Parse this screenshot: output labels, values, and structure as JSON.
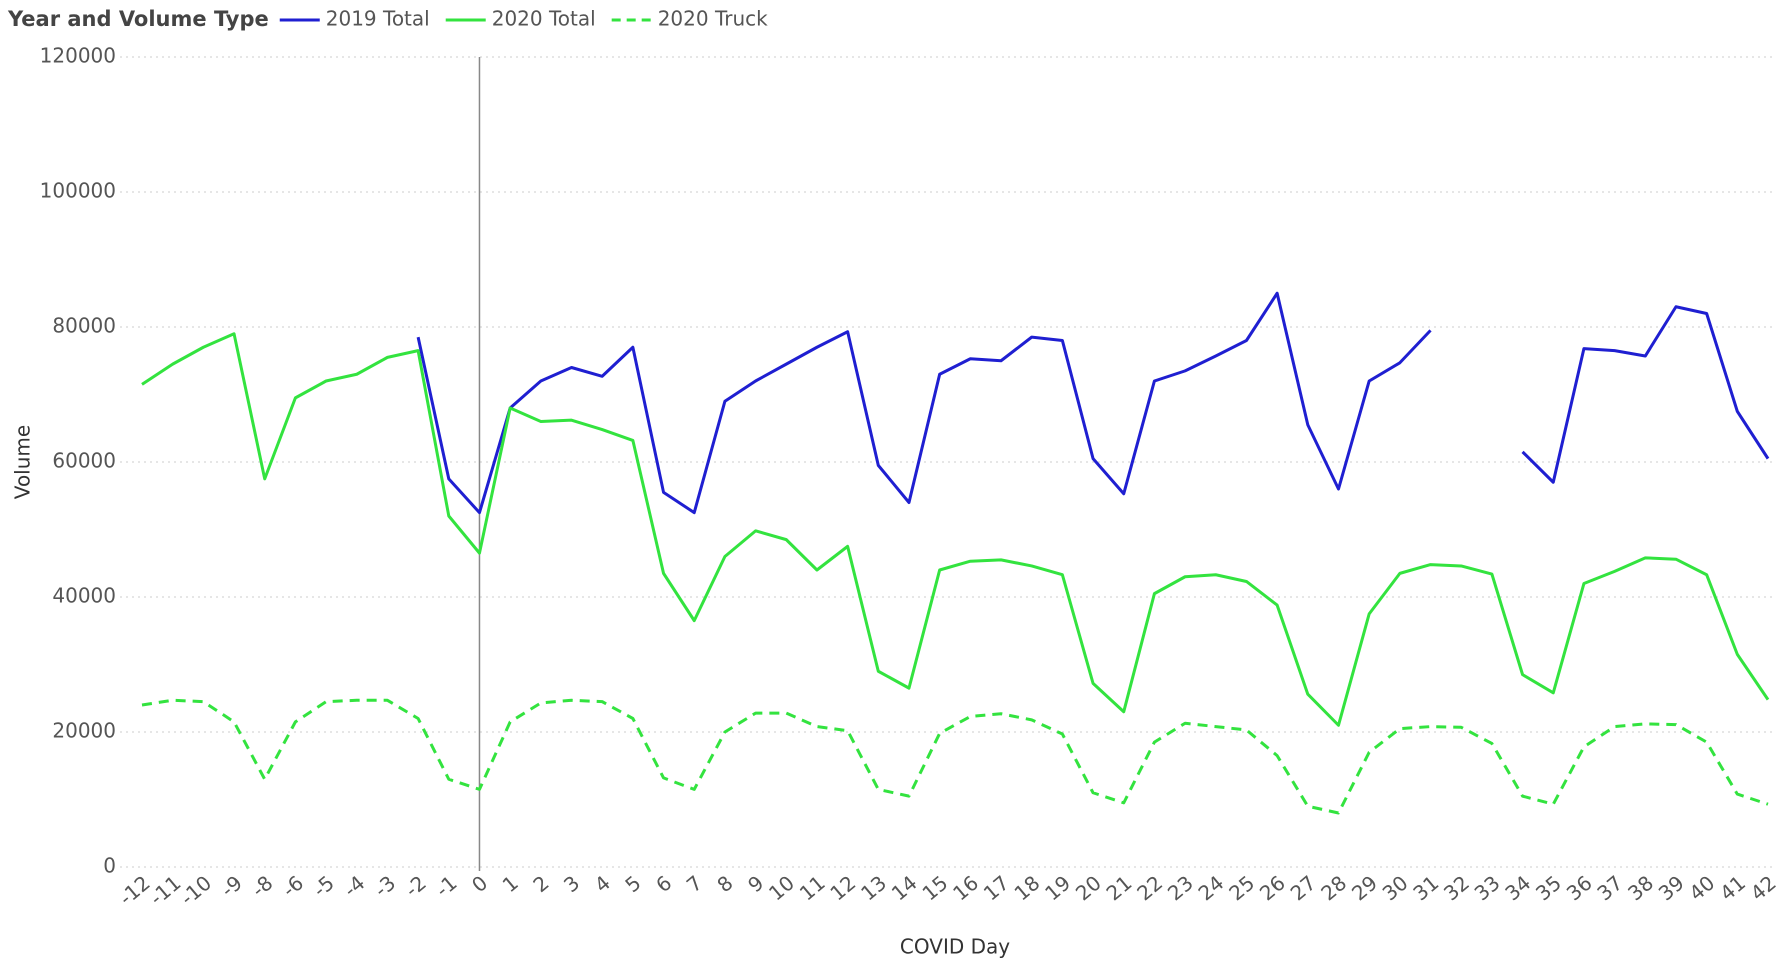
{
  "chart_data": {
    "type": "line",
    "legend_title": "Year and Volume Type",
    "x_label": "COVID Day",
    "y_label": "Volume",
    "categories": [
      -12,
      -11,
      -10,
      -9,
      -8,
      -6,
      -5,
      -4,
      -3,
      -2,
      -1,
      0,
      1,
      2,
      3,
      4,
      5,
      6,
      7,
      8,
      9,
      10,
      11,
      12,
      13,
      14,
      15,
      16,
      17,
      18,
      19,
      20,
      21,
      22,
      23,
      24,
      25,
      26,
      27,
      28,
      29,
      30,
      31,
      32,
      33,
      34,
      35,
      36,
      37,
      38,
      39,
      40,
      41,
      42
    ],
    "series": [
      {
        "name": "2019 Total",
        "color": "#1f1fd1",
        "line_style": "solid",
        "values": [
          null,
          null,
          null,
          null,
          null,
          null,
          null,
          null,
          null,
          78500,
          57500,
          52500,
          68000,
          72000,
          74000,
          72700,
          77000,
          55500,
          52500,
          69000,
          72000,
          74500,
          77000,
          79300,
          59500,
          54000,
          73000,
          75300,
          75000,
          78500,
          78000,
          60500,
          55300,
          72000,
          73500,
          75700,
          78000,
          85000,
          65500,
          56000,
          72000,
          74700,
          79500,
          null,
          null,
          61500,
          57000,
          76800,
          76500,
          75700,
          83000,
          82000,
          67500,
          60500
        ]
      },
      {
        "name": "2020 Total",
        "color": "#33e33f",
        "line_style": "solid",
        "values": [
          71500,
          74500,
          77000,
          79000,
          57500,
          69500,
          72000,
          73000,
          75500,
          76500,
          52000,
          46500,
          68000,
          66000,
          66200,
          64800,
          63200,
          43500,
          36500,
          46000,
          49800,
          48500,
          44000,
          47500,
          29000,
          26500,
          44000,
          45300,
          45500,
          44600,
          43300,
          27200,
          23000,
          40500,
          43000,
          43300,
          42300,
          38800,
          25600,
          21000,
          37500,
          43500,
          44800,
          44600,
          43400,
          28500,
          25800,
          42000,
          43800,
          45800,
          45600,
          43300,
          31500,
          24800
        ]
      },
      {
        "name": "2020 Truck",
        "color": "#33e33f",
        "line_style": "dashed",
        "values": [
          24000,
          24700,
          24500,
          21500,
          13000,
          21500,
          24500,
          24700,
          24700,
          22000,
          13000,
          11500,
          21500,
          24300,
          24700,
          24500,
          22000,
          13200,
          11500,
          20000,
          22800,
          22800,
          20800,
          20200,
          11500,
          10500,
          19800,
          22300,
          22700,
          21800,
          19700,
          11000,
          9500,
          18500,
          21300,
          20800,
          20300,
          16500,
          9000,
          8000,
          17000,
          20500,
          20800,
          20700,
          18300,
          10500,
          9300,
          17800,
          20800,
          21200,
          21100,
          18500,
          10800,
          9300
        ]
      }
    ],
    "ylim": [
      0,
      120000
    ],
    "yticks": [
      0,
      20000,
      40000,
      60000,
      80000,
      100000,
      120000
    ],
    "grid": true,
    "reference_category": 0,
    "legend_position": "top-left"
  }
}
